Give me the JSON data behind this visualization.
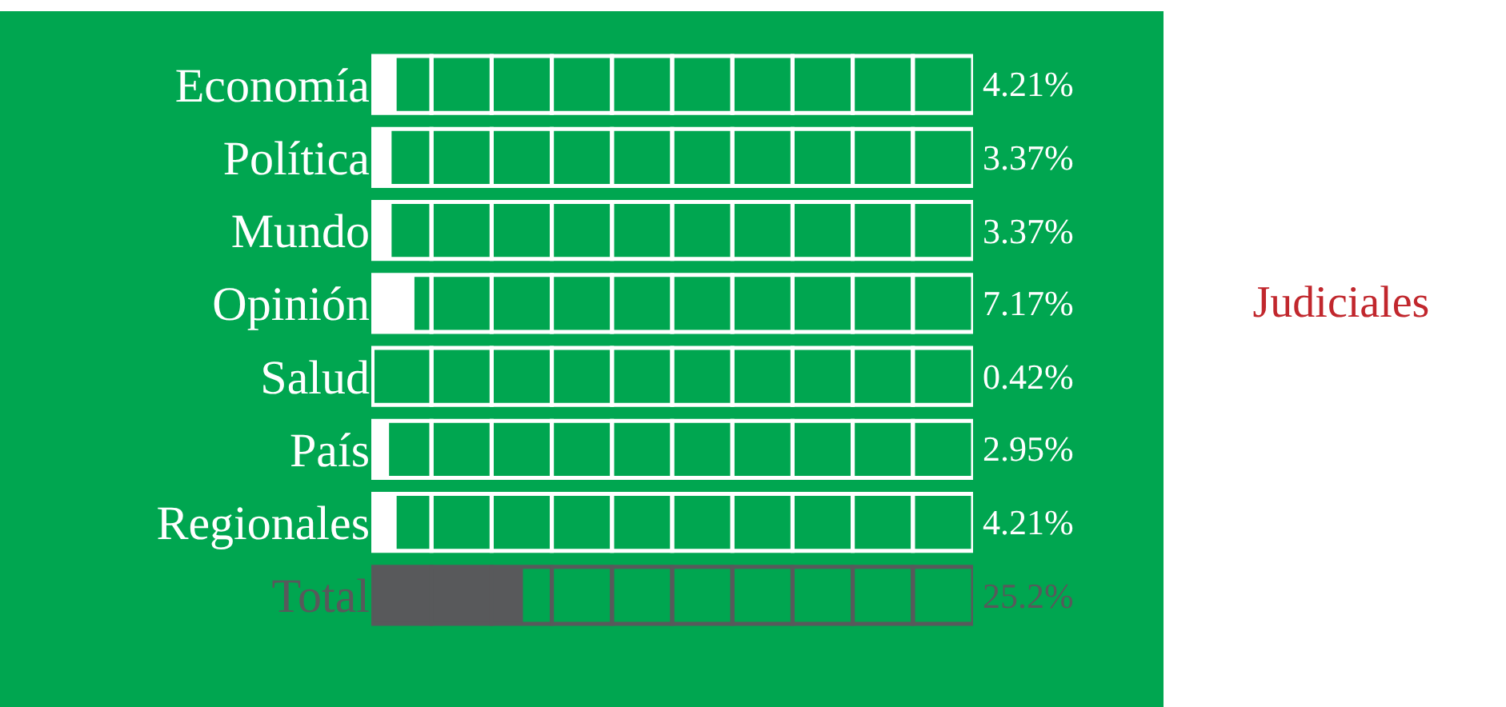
{
  "chart_data": {
    "type": "bar",
    "orientation": "horizontal",
    "title": "Judiciales",
    "categories": [
      "Economía",
      "Política",
      "Mundo",
      "Opinión",
      "Salud",
      "País",
      "Regionales",
      "Total"
    ],
    "values": [
      4.21,
      3.37,
      3.37,
      7.17,
      0.42,
      2.95,
      4.21,
      25.2
    ],
    "colors": [
      "#ffffff",
      "#ffffff",
      "#ffffff",
      "#ffffff",
      "#ffffff",
      "#ffffff",
      "#ffffff",
      "#58595b"
    ],
    "value_labels": [
      "4.21%",
      "3.37%",
      "3.37%",
      "7.17%",
      "0.42%",
      "2.95%",
      "4.21%",
      "25.2%"
    ],
    "xlim": [
      0,
      100
    ],
    "tick_labels": "y",
    "legend": false
  }
}
